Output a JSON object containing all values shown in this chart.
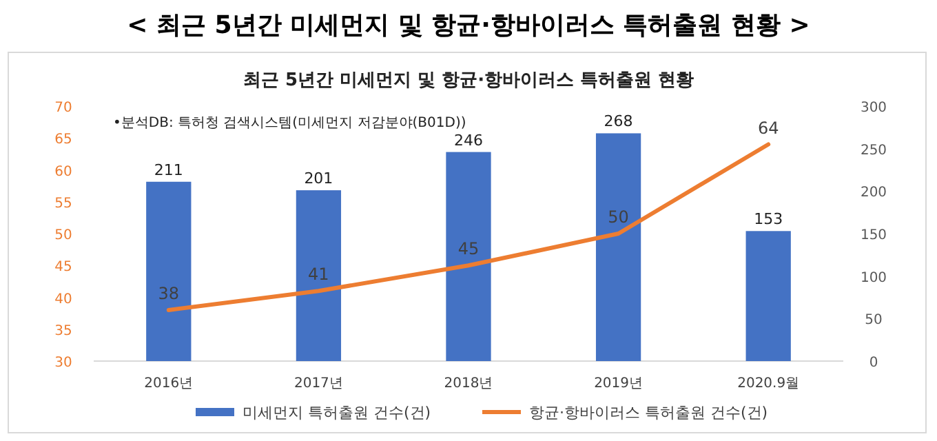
{
  "chart_data": {
    "type": "bar",
    "title": "< 최근 5년간 미세먼지 및 항균·항바이러스 특허출원 현황 >",
    "subtitle": "최근 5년간 미세먼지 및 항균·항바이러스 특허출원 현황",
    "annotations": [
      "•분석DB: 특허청 검색시스템(미세먼지 저감분야(B01D))"
    ],
    "categories": [
      "2016년",
      "2017년",
      "2018년",
      "2019년",
      "2020.9월"
    ],
    "series": [
      {
        "name": "미세먼지 특허출원 건수(건)",
        "axis": "y2",
        "color": "#4472c4",
        "values": [
          211,
          201,
          246,
          268,
          153
        ]
      },
      {
        "name": "항균·항바이러스 특허출원 건수(건)",
        "type": "line",
        "axis": "y",
        "color": "#ed7d31",
        "values": [
          38,
          41,
          45,
          50,
          64
        ]
      }
    ],
    "ylim": [
      30,
      70
    ],
    "yticks": [
      30,
      35,
      40,
      45,
      50,
      55,
      60,
      65,
      70
    ],
    "y2lim": [
      0,
      300
    ],
    "y2ticks": [
      0,
      50,
      100,
      150,
      200,
      250,
      300
    ],
    "data_labels": true,
    "legend": "bottom",
    "marker": "none",
    "line_style": "solid"
  }
}
